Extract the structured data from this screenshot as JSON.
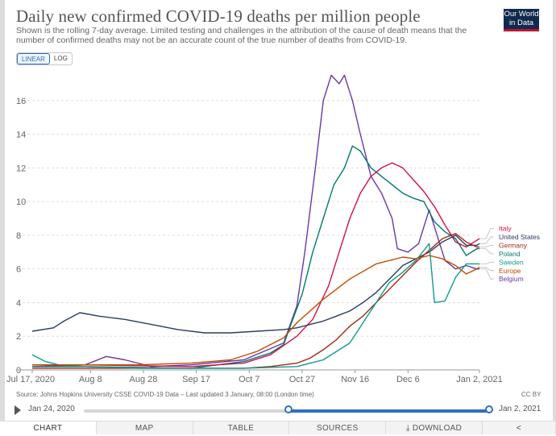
{
  "header": {
    "title": "Daily new confirmed COVID-19 deaths per million people",
    "subtitle": "Shown is the rolling 7-day average. Limited testing and challenges in the attribution of the cause of death means that the number of confirmed deaths may not be an accurate count of the true number of deaths from COVID-19.",
    "logo_line1": "Our World",
    "logo_line2": "in Data"
  },
  "controls": {
    "linear_label": "LINEAR",
    "log_label": "LOG",
    "selected_scale": "LINEAR"
  },
  "footer": {
    "source": "Source: Johns Hopkins University CSSE COVID-19 Data – Last updated 3 January, 08:00 (London time)",
    "license": "CC BY"
  },
  "timeline": {
    "start_label": "Jan 24, 2020",
    "end_label": "Jan 2, 2021"
  },
  "tabs": {
    "chart": "CHART",
    "map": "MAP",
    "table": "TABLE",
    "sources": "SOURCES",
    "download": "DOWNLOAD"
  },
  "colors": {
    "Italy": "#d0104c",
    "United States": "#2a3d5b",
    "Germany": "#a5281b",
    "Poland": "#007a6e",
    "Sweden": "#0f9c8e",
    "Europe": "#c44a00",
    "Belgium": "#6a37a8",
    "axis": "#999999",
    "grid": "#dddddd",
    "accent": "#2f6fbf"
  },
  "chart_data": {
    "type": "line",
    "title": "Daily new confirmed COVID-19 deaths per million people",
    "x_domain": [
      "2020-07-17",
      "2021-01-02"
    ],
    "x_ticks": [
      "Jul 17, 2020",
      "Aug 8",
      "Aug 28",
      "Sep 17",
      "Oct 7",
      "Oct 27",
      "Nov 16",
      "Dec 6",
      "Jan 2, 2021"
    ],
    "x_tick_days": [
      0,
      22,
      42,
      62,
      82,
      102,
      122,
      142,
      169
    ],
    "ylim": [
      0,
      18
    ],
    "y_ticks": [
      0,
      2,
      4,
      6,
      8,
      10,
      12,
      14,
      16
    ],
    "grid": true,
    "legend_placement": "right, end-of-line labels",
    "series": [
      {
        "name": "Belgium",
        "days": [
          0,
          20,
          28,
          35,
          45,
          60,
          80,
          95,
          100,
          103,
          107,
          110,
          113,
          116,
          118,
          121,
          124,
          128,
          132,
          136,
          138,
          142,
          146,
          150,
          154,
          156,
          160,
          164,
          168,
          169
        ],
        "values": [
          0.2,
          0.3,
          0.8,
          0.6,
          0.2,
          0.3,
          0.6,
          1.6,
          3.8,
          7.0,
          12.0,
          16.0,
          17.5,
          17.0,
          17.5,
          16.0,
          14.0,
          11.5,
          10.5,
          9.0,
          7.2,
          7.0,
          7.5,
          9.5,
          7.5,
          6.5,
          6.0,
          6.2,
          6.0,
          6.0
        ]
      },
      {
        "name": "Poland",
        "days": [
          0,
          20,
          60,
          80,
          90,
          95,
          98,
          102,
          106,
          110,
          114,
          118,
          121,
          124,
          128,
          132,
          136,
          140,
          144,
          148,
          152,
          156,
          160,
          164,
          168,
          169
        ],
        "values": [
          0.2,
          0.2,
          0.1,
          0.5,
          1.0,
          1.5,
          2.8,
          4.5,
          7.0,
          9.0,
          11.0,
          12.0,
          13.3,
          13.0,
          12.0,
          11.5,
          11.0,
          10.5,
          10.2,
          10.0,
          8.8,
          8.2,
          7.8,
          6.8,
          7.2,
          7.2
        ]
      },
      {
        "name": "Italy",
        "days": [
          0,
          20,
          60,
          80,
          90,
          100,
          106,
          112,
          116,
          120,
          124,
          128,
          132,
          136,
          140,
          144,
          148,
          152,
          156,
          160,
          164,
          168,
          169
        ],
        "values": [
          0.3,
          0.3,
          0.2,
          0.4,
          0.9,
          2.0,
          3.0,
          5.0,
          7.0,
          9.0,
          10.5,
          11.5,
          12.0,
          12.3,
          12.0,
          11.3,
          10.6,
          9.7,
          8.6,
          7.6,
          7.3,
          7.7,
          7.8
        ]
      },
      {
        "name": "United States",
        "days": [
          0,
          8,
          12,
          18,
          25,
          35,
          45,
          55,
          65,
          75,
          85,
          95,
          100,
          105,
          110,
          115,
          120,
          125,
          130,
          135,
          140,
          145,
          150,
          155,
          160,
          164,
          168,
          169
        ],
        "values": [
          2.3,
          2.5,
          2.9,
          3.4,
          3.2,
          3.0,
          2.7,
          2.4,
          2.2,
          2.2,
          2.3,
          2.4,
          2.5,
          2.7,
          2.9,
          3.2,
          3.5,
          4.0,
          4.6,
          5.4,
          6.2,
          6.6,
          7.0,
          7.6,
          8.0,
          7.4,
          7.4,
          7.5
        ]
      },
      {
        "name": "Germany",
        "days": [
          0,
          40,
          60,
          80,
          90,
          100,
          105,
          110,
          115,
          120,
          125,
          130,
          135,
          140,
          145,
          150,
          155,
          160,
          164,
          168,
          169
        ],
        "values": [
          0.1,
          0.1,
          0.1,
          0.1,
          0.2,
          0.4,
          0.7,
          1.2,
          1.8,
          2.6,
          3.2,
          4.0,
          4.8,
          5.6,
          6.4,
          7.1,
          7.8,
          8.1,
          7.6,
          7.3,
          7.3
        ]
      },
      {
        "name": "Sweden",
        "days": [
          0,
          5,
          10,
          20,
          40,
          60,
          80,
          100,
          110,
          120,
          125,
          130,
          135,
          140,
          145,
          150,
          152,
          156,
          160,
          164,
          168,
          169
        ],
        "values": [
          0.9,
          0.5,
          0.3,
          0.2,
          0.1,
          0.1,
          0.1,
          0.2,
          0.6,
          1.6,
          2.8,
          4.0,
          5.2,
          5.8,
          6.5,
          7.5,
          4.0,
          4.1,
          5.5,
          6.3,
          6.3,
          6.3
        ]
      },
      {
        "name": "Europe",
        "days": [
          0,
          40,
          60,
          75,
          85,
          95,
          100,
          110,
          120,
          130,
          140,
          145,
          150,
          155,
          160,
          164,
          168,
          169
        ],
        "values": [
          0.3,
          0.3,
          0.4,
          0.6,
          1.1,
          1.9,
          2.8,
          4.2,
          5.4,
          6.3,
          6.7,
          6.6,
          6.8,
          6.6,
          6.2,
          5.7,
          6.0,
          6.1
        ]
      }
    ],
    "end_labels": [
      {
        "name": "Italy",
        "label_value": 8.4
      },
      {
        "name": "United States",
        "label_value": 7.9
      },
      {
        "name": "Germany",
        "label_value": 7.4
      },
      {
        "name": "Poland",
        "label_value": 6.9
      },
      {
        "name": "Sweden",
        "label_value": 6.4
      },
      {
        "name": "Europe",
        "label_value": 5.9
      },
      {
        "name": "Belgium",
        "label_value": 5.4
      }
    ]
  }
}
